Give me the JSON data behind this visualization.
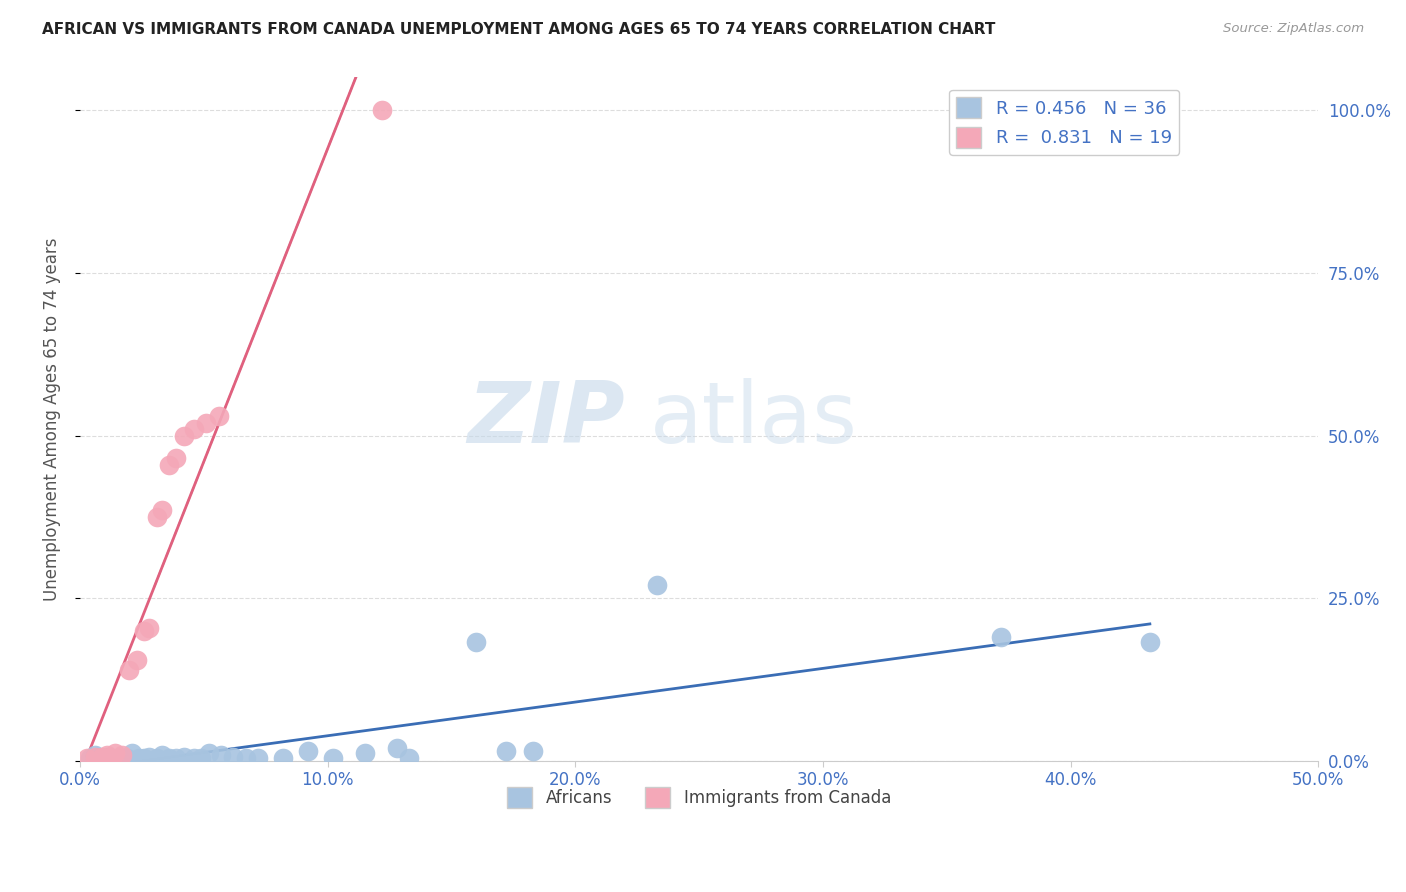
{
  "title": "AFRICAN VS IMMIGRANTS FROM CANADA UNEMPLOYMENT AMONG AGES 65 TO 74 YEARS CORRELATION CHART",
  "source": "Source: ZipAtlas.com",
  "ylabel": "Unemployment Among Ages 65 to 74 years",
  "xlim": [
    0.0,
    0.5
  ],
  "ylim": [
    0.0,
    1.05
  ],
  "blue_R": 0.456,
  "blue_N": 36,
  "pink_R": 0.831,
  "pink_N": 19,
  "legend_labels": [
    "Africans",
    "Immigrants from Canada"
  ],
  "blue_color": "#a8c4e0",
  "pink_color": "#f4a8b8",
  "blue_line_color": "#3a6db5",
  "pink_line_color": "#e0607e",
  "gray_dash_color": "#bbbbbb",
  "blue_scatter": [
    [
      0.004,
      0.005
    ],
    [
      0.006,
      0.01
    ],
    [
      0.007,
      0.006
    ],
    [
      0.009,
      0.005
    ],
    [
      0.011,
      0.007
    ],
    [
      0.013,
      0.005
    ],
    [
      0.016,
      0.005
    ],
    [
      0.019,
      0.005
    ],
    [
      0.021,
      0.012
    ],
    [
      0.024,
      0.005
    ],
    [
      0.026,
      0.005
    ],
    [
      0.028,
      0.007
    ],
    [
      0.031,
      0.005
    ],
    [
      0.033,
      0.01
    ],
    [
      0.036,
      0.005
    ],
    [
      0.039,
      0.005
    ],
    [
      0.042,
      0.007
    ],
    [
      0.046,
      0.005
    ],
    [
      0.049,
      0.005
    ],
    [
      0.052,
      0.012
    ],
    [
      0.057,
      0.01
    ],
    [
      0.062,
      0.007
    ],
    [
      0.067,
      0.005
    ],
    [
      0.072,
      0.005
    ],
    [
      0.082,
      0.005
    ],
    [
      0.092,
      0.015
    ],
    [
      0.102,
      0.005
    ],
    [
      0.115,
      0.012
    ],
    [
      0.128,
      0.02
    ],
    [
      0.133,
      0.005
    ],
    [
      0.16,
      0.183
    ],
    [
      0.172,
      0.015
    ],
    [
      0.183,
      0.015
    ],
    [
      0.233,
      0.27
    ],
    [
      0.372,
      0.19
    ],
    [
      0.432,
      0.183
    ]
  ],
  "pink_scatter": [
    [
      0.003,
      0.005
    ],
    [
      0.006,
      0.007
    ],
    [
      0.009,
      0.007
    ],
    [
      0.011,
      0.01
    ],
    [
      0.014,
      0.012
    ],
    [
      0.017,
      0.01
    ],
    [
      0.02,
      0.14
    ],
    [
      0.023,
      0.155
    ],
    [
      0.026,
      0.2
    ],
    [
      0.028,
      0.205
    ],
    [
      0.031,
      0.375
    ],
    [
      0.033,
      0.385
    ],
    [
      0.036,
      0.455
    ],
    [
      0.039,
      0.465
    ],
    [
      0.042,
      0.5
    ],
    [
      0.046,
      0.51
    ],
    [
      0.051,
      0.52
    ],
    [
      0.056,
      0.53
    ],
    [
      0.122,
      1.0
    ]
  ],
  "background_color": "#ffffff",
  "grid_color": "#dddddd",
  "title_color": "#222222",
  "axis_label_color": "#555555",
  "tick_color": "#4472c4",
  "legend_r_color": "#4472c4"
}
